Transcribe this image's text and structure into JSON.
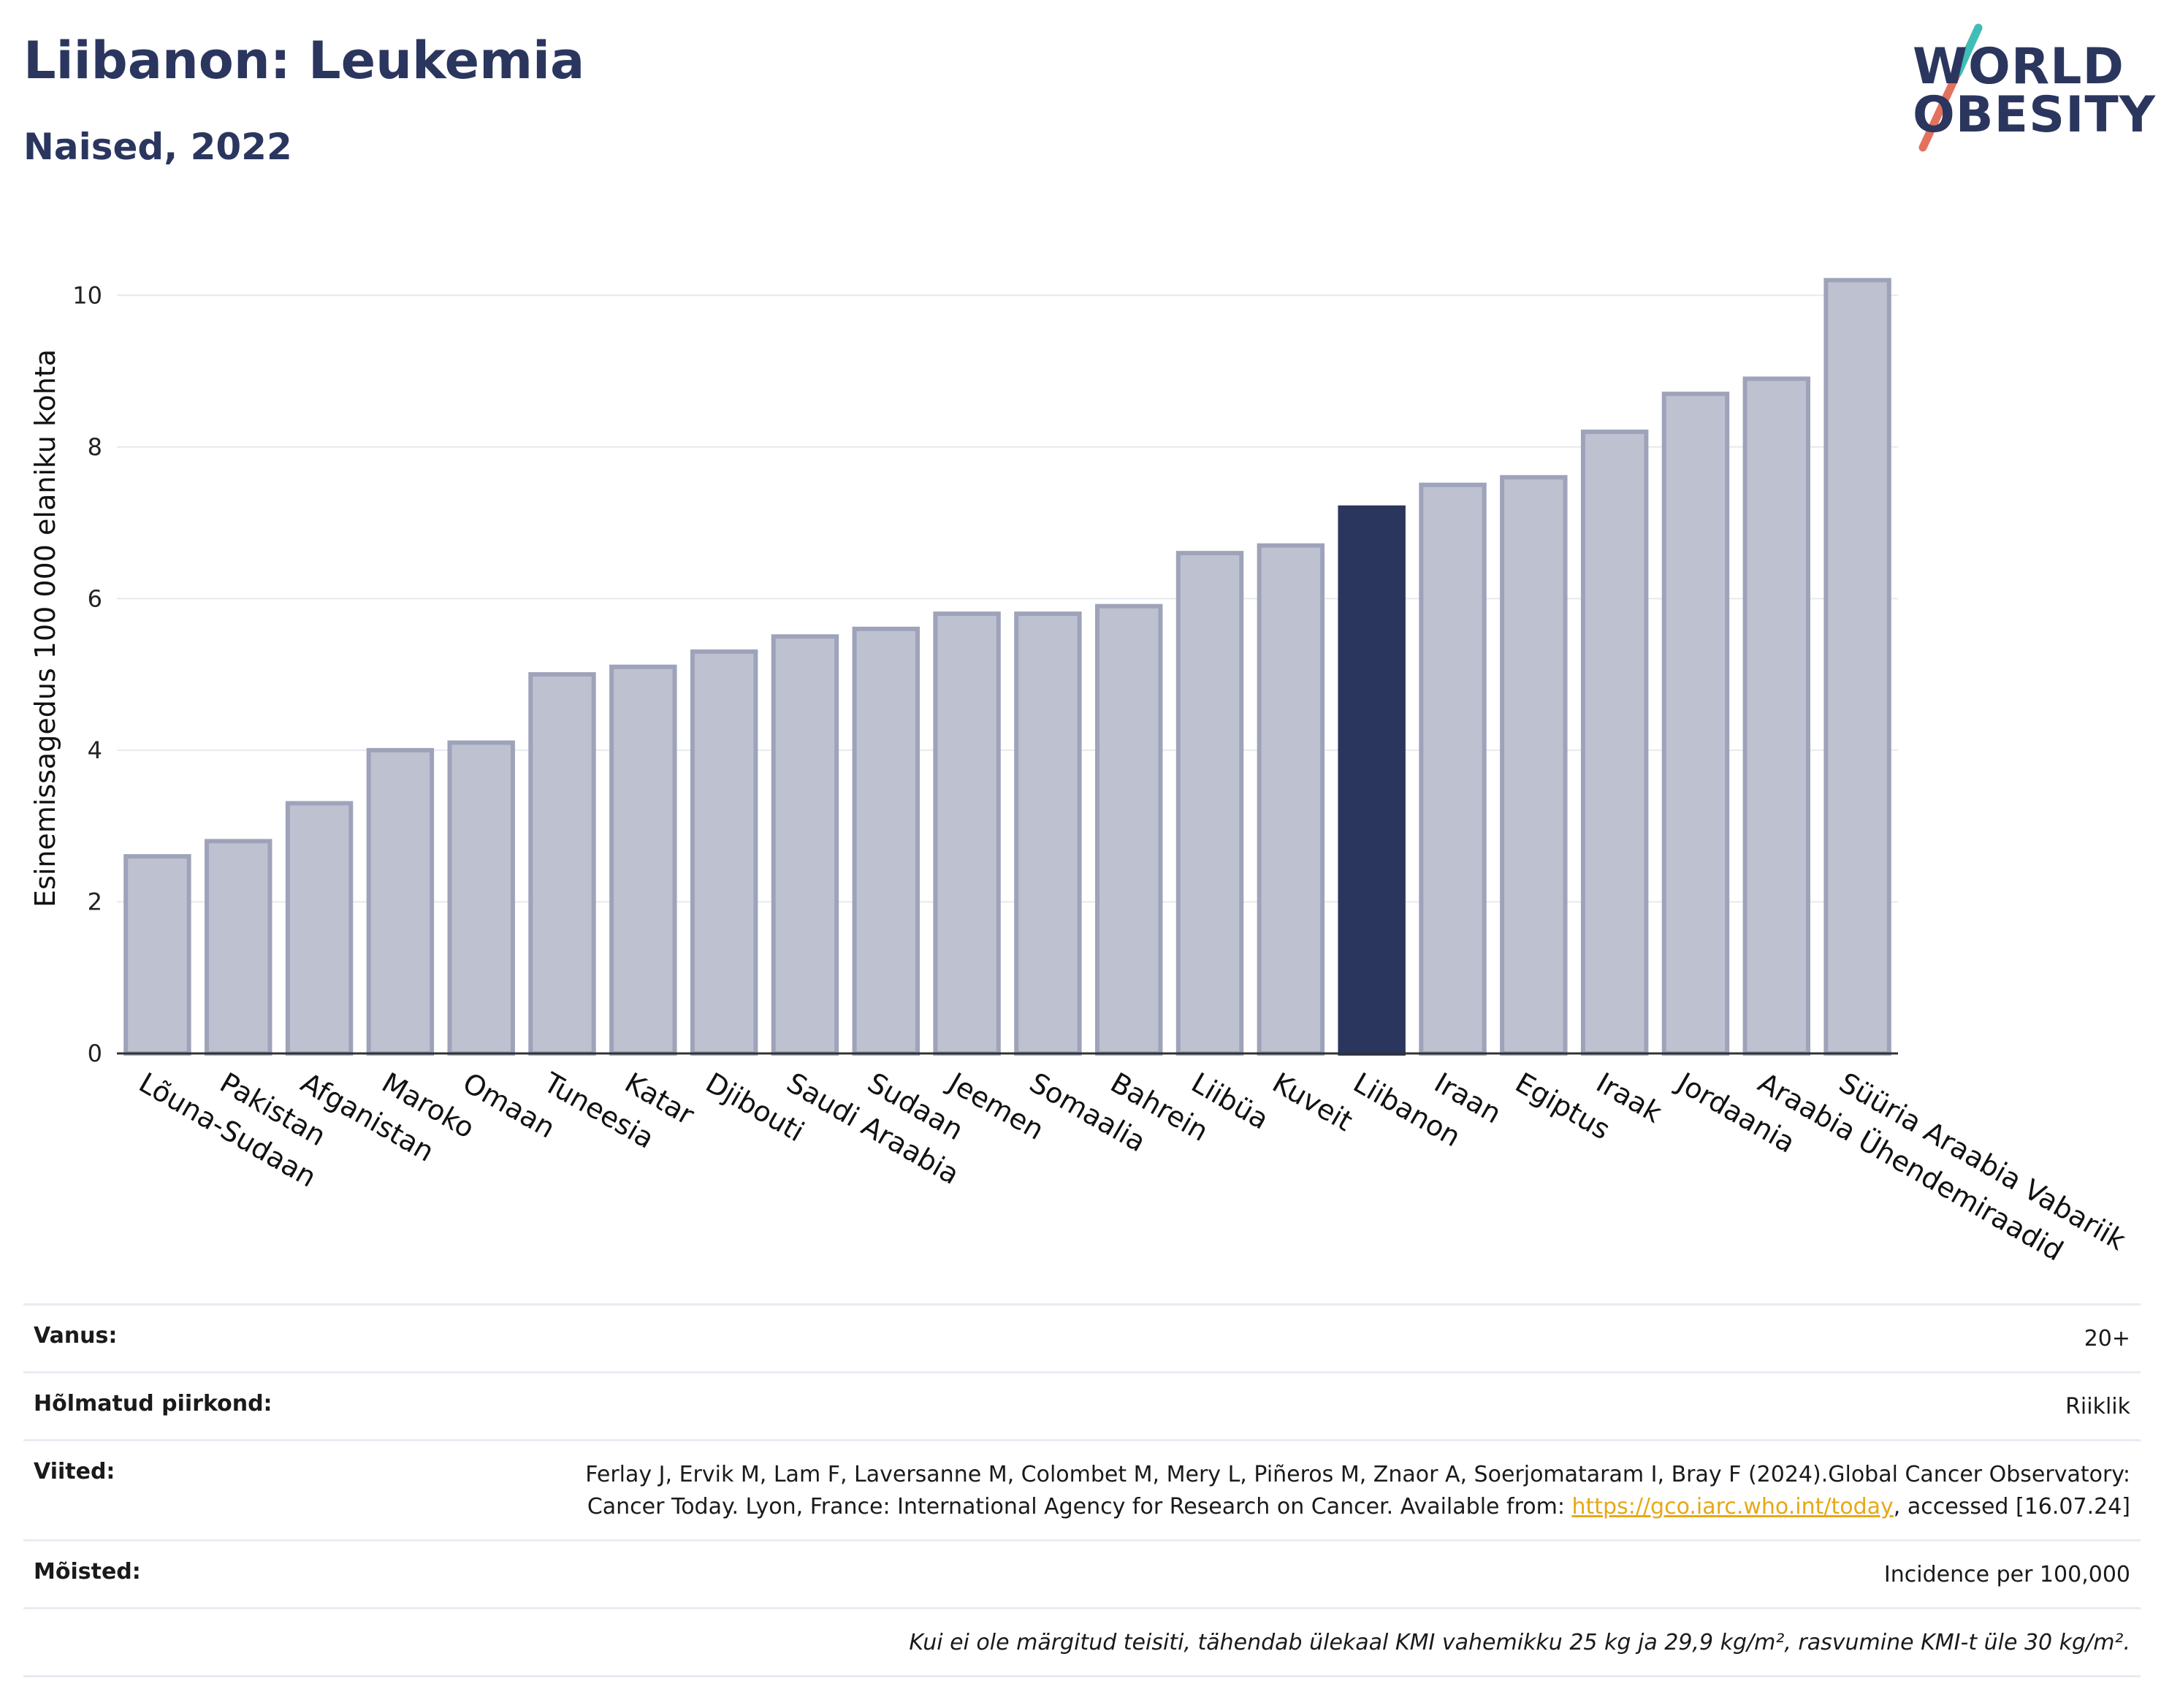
{
  "header": {
    "title": "Liibanon: Leukemia",
    "subtitle": "Naised, 2022"
  },
  "logo": {
    "line1": "WORLD",
    "line2": "OBESITY"
  },
  "colors": {
    "bar_default": "#bec1d0",
    "bar_default_stroke": "#9ea3ba",
    "bar_highlight": "#2b365f",
    "grid": "#e6e9ef",
    "axis": "#333333"
  },
  "chart_data": {
    "type": "bar",
    "ylabel": "Esinemissagedus 100 000 elaniku kohta",
    "ylim": [
      0,
      10.6
    ],
    "yticks": [
      0,
      2,
      4,
      6,
      8,
      10
    ],
    "grid": true,
    "highlight": "Liibanon",
    "categories": [
      "Lõuna-Sudaan",
      "Pakistan",
      "Afganistan",
      "Maroko",
      "Omaan",
      "Tuneesia",
      "Katar",
      "Djibouti",
      "Saudi Araabia",
      "Sudaan",
      "Jeemen",
      "Somaalia",
      "Bahrein",
      "Liibüa",
      "Kuveit",
      "Liibanon",
      "Iraan",
      "Egiptus",
      "Iraak",
      "Jordaania",
      "Araabia Ühendemiraadid",
      "Süüria Araabia Vabariik"
    ],
    "values": [
      2.6,
      2.8,
      3.3,
      4.0,
      4.1,
      5.0,
      5.1,
      5.3,
      5.5,
      5.6,
      5.8,
      5.8,
      5.9,
      6.6,
      6.7,
      7.2,
      7.5,
      7.6,
      8.2,
      8.7,
      8.9,
      10.2
    ]
  },
  "info": {
    "age_label": "Vanus:",
    "age_value": "20+",
    "region_label": "Hõlmatud piirkond:",
    "region_value": "Riiklik",
    "refs_label": "Viited:",
    "refs_text": "Ferlay J, Ervik M, Lam F, Laversanne M, Colombet M, Mery L, Piñeros M, Znaor A, Soerjomataram I, Bray F (2024).Global Cancer Observatory: Cancer Today. Lyon, France: International Agency for Research on Cancer. Available from:",
    "refs_link": "https://gco.iarc.who.int/today",
    "refs_tail": ", accessed [16.07.24]",
    "terms_label": "Mõisted:",
    "terms_value": "Incidence per 100,000",
    "note": "Kui ei ole märgitud teisiti, tähendab ülekaal KMI vahemikku 25 kg ja 29,9 kg/m², rasvumine KMI-t üle 30 kg/m²."
  }
}
